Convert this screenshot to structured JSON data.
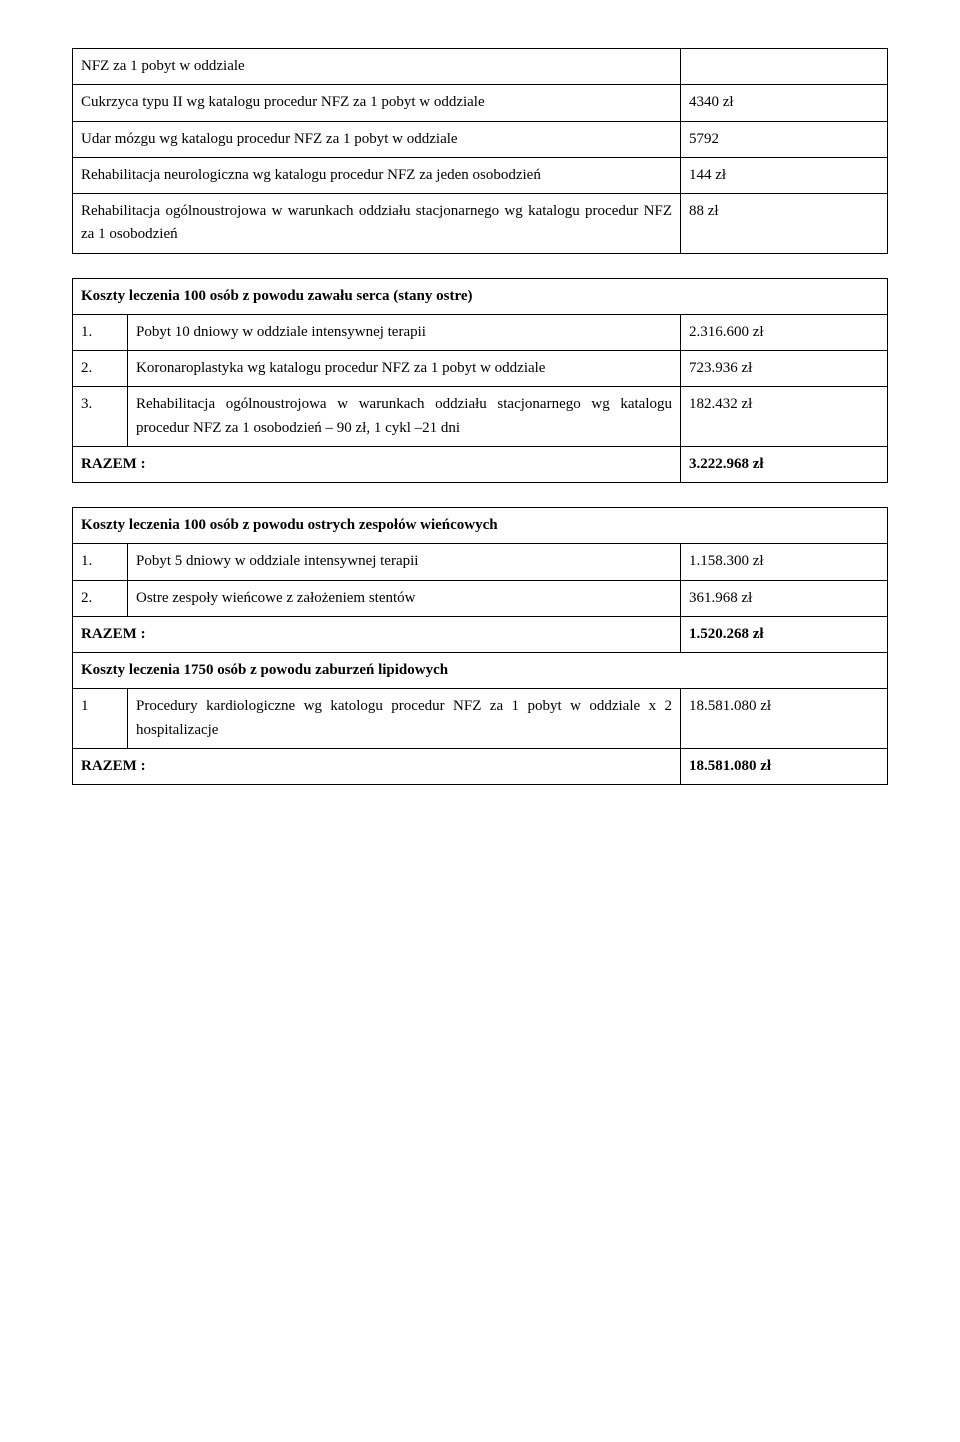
{
  "table1": {
    "rows": [
      {
        "desc": "NFZ za 1 pobyt w oddziale",
        "val": ""
      },
      {
        "desc": "Cukrzyca typu II wg katalogu procedur NFZ za 1 pobyt w oddziale",
        "val": "4340 zł"
      },
      {
        "desc": "Udar mózgu wg katalogu procedur NFZ za 1 pobyt w oddziale",
        "val": "5792"
      },
      {
        "desc": "Rehabilitacja neurologiczna wg katalogu procedur NFZ za jeden osobodzień",
        "val": "144 zł"
      },
      {
        "desc": "Rehabilitacja ogólnoustrojowa w warunkach oddziału stacjonarnego wg katalogu procedur NFZ za 1 osobodzień",
        "val": "88 zł"
      }
    ]
  },
  "table2": {
    "title": "Koszty leczenia 100 osób z powodu zawału serca (stany ostre)",
    "rows": [
      {
        "n": "1.",
        "desc": "Pobyt 10 dniowy w oddziale intensywnej terapii",
        "val": "2.316.600 zł"
      },
      {
        "n": "2.",
        "desc": "Koronaroplastyka wg katalogu procedur NFZ za 1 pobyt w oddziale",
        "val": "723.936 zł"
      },
      {
        "n": "3.",
        "desc": "Rehabilitacja ogólnoustrojowa w warunkach oddziału stacjonarnego wg katalogu procedur NFZ za 1 osobodzień – 90 zł, 1 cykl –21 dni",
        "val": "182.432 zł"
      }
    ],
    "total_label": "RAZEM :",
    "total_val": "3.222.968 zł"
  },
  "table3": {
    "title1": "Koszty leczenia 100 osób z powodu ostrych zespołów wieńcowych",
    "rows1": [
      {
        "n": "1.",
        "desc": "Pobyt 5 dniowy w oddziale intensywnej terapii",
        "val": "1.158.300 zł"
      },
      {
        "n": "2.",
        "desc": "Ostre zespoły wieńcowe z założeniem stentów",
        "val": "361.968 zł"
      }
    ],
    "total1_label": "RAZEM :",
    "total1_val": "1.520.268 zł",
    "title2": "Koszty leczenia 1750 osób z powodu zaburzeń lipidowych",
    "rows2": [
      {
        "n": "1",
        "desc": "Procedury kardiologiczne wg katologu procedur NFZ za 1 pobyt w oddziale x 2 hospitalizacje",
        "val": "18.581.080 zł"
      }
    ],
    "total2_label": "RAZEM :",
    "total2_val": "18.581.080 zł"
  }
}
